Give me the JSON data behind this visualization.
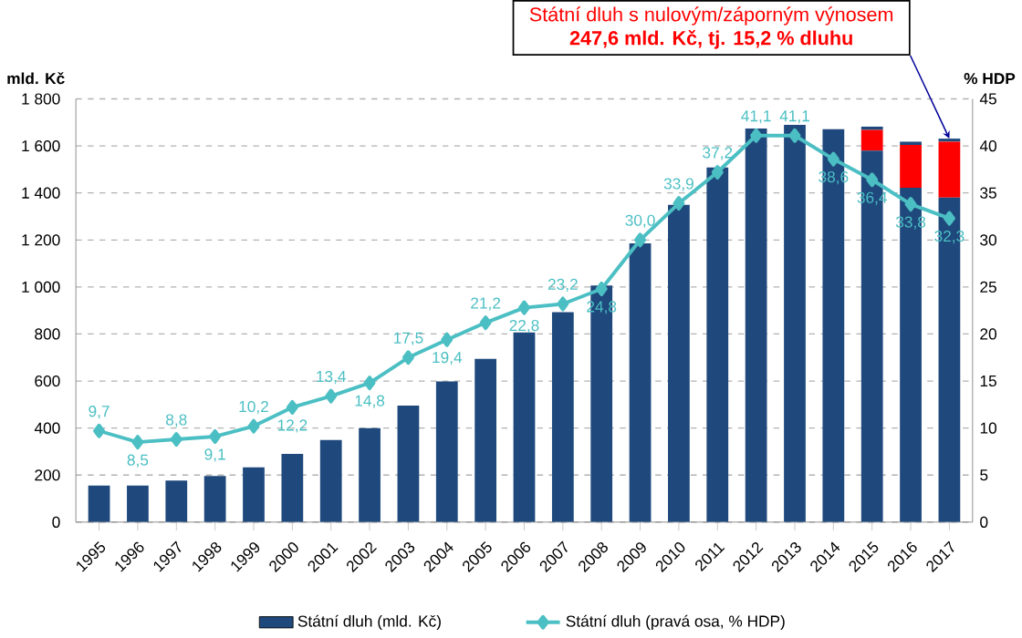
{
  "chart_data": {
    "type": "bar",
    "stacked": true,
    "categories": [
      "1995",
      "1996",
      "1997",
      "1998",
      "1999",
      "2000",
      "2001",
      "2002",
      "2003",
      "2004",
      "2005",
      "2006",
      "2007",
      "2008",
      "2009",
      "2010",
      "2011",
      "2012",
      "2013",
      "2014",
      "2015",
      "2016",
      "2017"
    ],
    "series": [
      {
        "name": "Státní dluh (mld. Kč)",
        "color": "#1f497d",
        "values": [
          155,
          155,
          177,
          196,
          233,
          290,
          349,
          400,
          496,
          598,
          694,
          807,
          893,
          1006,
          1186,
          1349,
          1508,
          1674,
          1690,
          1671,
          1580,
          1422,
          1380
        ]
      },
      {
        "color": "#ff0000",
        "values": [
          0,
          0,
          0,
          0,
          0,
          0,
          0,
          0,
          0,
          0,
          0,
          0,
          0,
          0,
          0,
          0,
          0,
          0,
          0,
          0,
          88,
          182,
          238
        ]
      },
      {
        "color": "#1f497d",
        "values": [
          0,
          0,
          0,
          0,
          0,
          0,
          0,
          0,
          0,
          0,
          0,
          0,
          0,
          0,
          0,
          0,
          0,
          0,
          0,
          0,
          14,
          14,
          13
        ]
      },
      {
        "name": "Státní dluh (pravá osa, % HDP)",
        "type": "line",
        "axis": "y2",
        "color": "#4bbfc3",
        "values": [
          9.7,
          8.5,
          8.8,
          9.1,
          10.2,
          12.2,
          13.4,
          14.8,
          17.5,
          19.4,
          21.2,
          22.8,
          23.2,
          24.8,
          30.0,
          33.9,
          37.2,
          41.1,
          41.1,
          38.6,
          36.4,
          33.8,
          32.3
        ],
        "value_labels": [
          "9,7",
          "8,5",
          "8,8",
          "9,1",
          "10,2",
          "12,2",
          "13,4",
          "14,8",
          "17,5",
          "19,4",
          "21,2",
          "22,8",
          "23,2",
          "24,8",
          "30,0",
          "33,9",
          "37,2",
          "41,1",
          "41,1",
          "38,6",
          "36,4",
          "33,8",
          "32,3"
        ]
      }
    ],
    "ylabel": "mld. Kč",
    "y2label": "% HDP",
    "ylim": [
      0,
      1800
    ],
    "yticks": [
      0,
      200,
      400,
      600,
      800,
      {
        "value": 1000,
        "label": "1 000"
      },
      {
        "value": 1200,
        "label": "1 200"
      },
      {
        "value": 1400,
        "label": "1 400"
      },
      {
        "value": 1600,
        "label": "1 600"
      },
      {
        "value": 1800,
        "label": "1 800"
      }
    ],
    "y2lim": [
      0,
      45
    ],
    "y2ticks": [
      0,
      5,
      10,
      15,
      20,
      25,
      30,
      35,
      40,
      45
    ],
    "grid": "y",
    "legend": "bottom",
    "marker": "diamond",
    "annotations": [
      "Státní dluh s nulovým/záporným výnosem",
      "247,6 mld. Kč, tj.  15,2 % dluhu"
    ]
  }
}
